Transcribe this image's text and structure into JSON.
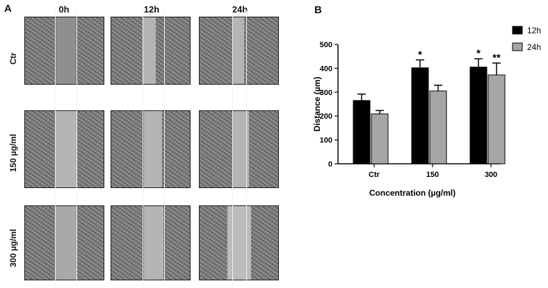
{
  "panel_a": {
    "letter": "A",
    "columns": [
      "0h",
      "12h",
      "24h"
    ],
    "rows": [
      "Ctr",
      "150 µg/ml",
      "300 µg/ml"
    ]
  },
  "panel_b": {
    "letter": "B"
  },
  "chart_data": {
    "type": "bar",
    "title": "",
    "xlabel": "Concentration (µg/ml)",
    "ylabel": "Distance (µm)",
    "categories": [
      "Ctr",
      "150",
      "300"
    ],
    "ylim": [
      0,
      500
    ],
    "yticks": [
      0,
      100,
      200,
      300,
      400,
      500
    ],
    "legend_position": "top-right",
    "series": [
      {
        "name": "12h",
        "color": "#000000",
        "values": [
          265,
          402,
          405
        ],
        "errors": [
          27,
          33,
          35
        ],
        "significance": [
          "",
          "*",
          "*"
        ]
      },
      {
        "name": "24h",
        "color": "#a6a6a6",
        "values": [
          209,
          305,
          372
        ],
        "errors": [
          14,
          24,
          50
        ],
        "significance": [
          "",
          "",
          "**"
        ]
      }
    ]
  }
}
